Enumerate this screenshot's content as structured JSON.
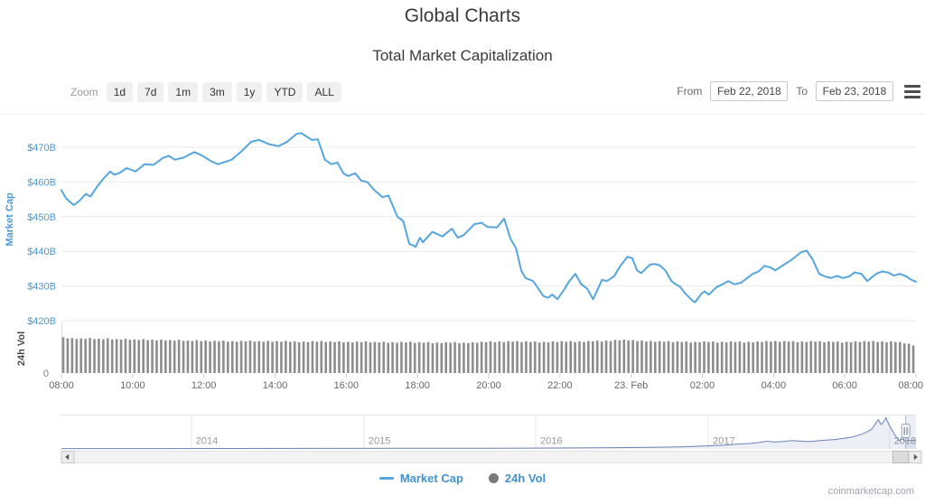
{
  "header": {
    "title": "Global Charts",
    "subtitle": "Total Market Capitalization"
  },
  "toolbar": {
    "zoom_label": "Zoom",
    "zoom_buttons": [
      "1d",
      "7d",
      "1m",
      "3m",
      "1y",
      "YTD",
      "ALL"
    ],
    "from_label": "From",
    "from_value": "Feb 22, 2018",
    "to_label": "To",
    "to_value": "Feb 23, 2018",
    "menu_icon": "hamburger-icon"
  },
  "legend": {
    "items": [
      {
        "label": "Market Cap",
        "marker": "line",
        "color": "#55a5de"
      },
      {
        "label": "24h Vol",
        "marker": "circle",
        "color": "#7a7a7a"
      }
    ]
  },
  "watermark": "coinmarketcap.com",
  "colors": {
    "line": "#55a5de",
    "axis_blue": "#4a98d8",
    "grid": "#e9e9e9",
    "vol_bar": "#8c8c8c",
    "vol_title": "#4a4a4a",
    "xlabel": "#666666",
    "year_label": "#999999",
    "zero_label": "#808080",
    "nav_line": "#6b82b8",
    "nav_fill": "rgba(107,130,184,0.13)",
    "nav_mask": "rgba(125,145,190,0.15)",
    "legend_text": "#4292cf",
    "watermark": "#a0a5ab"
  },
  "chart_data": [
    {
      "type": "line",
      "name": "Market Cap",
      "ylabel": "Market Cap",
      "x_unit": "minutes since Feb 22 2018 08:00",
      "xlim": [
        0,
        1440
      ],
      "ylim_billions": [
        420,
        478
      ],
      "grid": true,
      "yticks": [
        "$470B",
        "$460B",
        "$450B",
        "$440B",
        "$430B",
        "$420B"
      ],
      "ytick_values": [
        470,
        460,
        450,
        440,
        430,
        420
      ],
      "xticks": [
        "08:00",
        "10:00",
        "12:00",
        "14:00",
        "16:00",
        "18:00",
        "20:00",
        "22:00",
        "23. Feb",
        "02:00",
        "04:00",
        "06:00",
        "08:00"
      ],
      "points": [
        [
          0,
          457.6
        ],
        [
          8,
          455.2
        ],
        [
          21,
          453.3
        ],
        [
          30,
          454.5
        ],
        [
          41,
          456.5
        ],
        [
          49,
          455.8
        ],
        [
          60,
          458.6
        ],
        [
          70,
          460.8
        ],
        [
          82,
          463.0
        ],
        [
          89,
          462.1
        ],
        [
          98,
          462.6
        ],
        [
          110,
          464.0
        ],
        [
          125,
          463.0
        ],
        [
          140,
          465.1
        ],
        [
          155,
          464.9
        ],
        [
          171,
          466.9
        ],
        [
          181,
          467.5
        ],
        [
          191,
          466.4
        ],
        [
          206,
          467.0
        ],
        [
          224,
          468.6
        ],
        [
          236,
          467.7
        ],
        [
          252,
          466.0
        ],
        [
          264,
          465.1
        ],
        [
          287,
          466.4
        ],
        [
          302,
          468.6
        ],
        [
          320,
          471.6
        ],
        [
          333,
          472.1
        ],
        [
          351,
          470.8
        ],
        [
          366,
          470.3
        ],
        [
          380,
          471.5
        ],
        [
          396,
          473.8
        ],
        [
          404,
          474.1
        ],
        [
          422,
          472.1
        ],
        [
          432,
          472.3
        ],
        [
          444,
          466.4
        ],
        [
          455,
          465.1
        ],
        [
          465,
          465.6
        ],
        [
          475,
          462.5
        ],
        [
          483,
          461.7
        ],
        [
          495,
          462.5
        ],
        [
          505,
          460.4
        ],
        [
          516,
          459.9
        ],
        [
          526,
          457.8
        ],
        [
          541,
          455.6
        ],
        [
          551,
          456.1
        ],
        [
          566,
          450.0
        ],
        [
          576,
          448.7
        ],
        [
          586,
          442.2
        ],
        [
          597,
          441.3
        ],
        [
          604,
          443.9
        ],
        [
          609,
          442.6
        ],
        [
          625,
          445.6
        ],
        [
          642,
          444.3
        ],
        [
          658,
          446.5
        ],
        [
          668,
          443.9
        ],
        [
          678,
          444.7
        ],
        [
          696,
          447.8
        ],
        [
          708,
          448.2
        ],
        [
          718,
          447.0
        ],
        [
          734,
          446.9
        ],
        [
          746,
          449.4
        ],
        [
          757,
          443.5
        ],
        [
          766,
          440.9
        ],
        [
          775,
          434.4
        ],
        [
          782,
          432.3
        ],
        [
          795,
          431.4
        ],
        [
          812,
          427.1
        ],
        [
          820,
          426.6
        ],
        [
          827,
          427.5
        ],
        [
          836,
          426.2
        ],
        [
          848,
          429.2
        ],
        [
          856,
          431.4
        ],
        [
          866,
          433.5
        ],
        [
          876,
          430.5
        ],
        [
          886,
          429.2
        ],
        [
          896,
          426.2
        ],
        [
          911,
          431.8
        ],
        [
          919,
          431.4
        ],
        [
          931,
          432.7
        ],
        [
          942,
          435.8
        ],
        [
          954,
          438.4
        ],
        [
          962,
          438.0
        ],
        [
          970,
          434.5
        ],
        [
          977,
          433.7
        ],
        [
          992,
          436.2
        ],
        [
          1000,
          436.3
        ],
        [
          1008,
          436.0
        ],
        [
          1018,
          434.4
        ],
        [
          1028,
          431.4
        ],
        [
          1035,
          430.5
        ],
        [
          1043,
          429.7
        ],
        [
          1051,
          427.9
        ],
        [
          1063,
          425.8
        ],
        [
          1068,
          425.3
        ],
        [
          1079,
          427.9
        ],
        [
          1084,
          428.4
        ],
        [
          1091,
          427.5
        ],
        [
          1104,
          429.7
        ],
        [
          1114,
          430.5
        ],
        [
          1124,
          431.4
        ],
        [
          1134,
          430.5
        ],
        [
          1145,
          430.9
        ],
        [
          1152,
          431.8
        ],
        [
          1165,
          433.5
        ],
        [
          1175,
          434.2
        ],
        [
          1185,
          435.8
        ],
        [
          1195,
          435.3
        ],
        [
          1203,
          434.5
        ],
        [
          1218,
          436.2
        ],
        [
          1231,
          437.6
        ],
        [
          1246,
          439.7
        ],
        [
          1256,
          440.2
        ],
        [
          1266,
          437.6
        ],
        [
          1277,
          433.5
        ],
        [
          1287,
          432.7
        ],
        [
          1297,
          432.3
        ],
        [
          1307,
          432.9
        ],
        [
          1317,
          432.3
        ],
        [
          1327,
          432.7
        ],
        [
          1337,
          433.9
        ],
        [
          1348,
          433.5
        ],
        [
          1358,
          431.4
        ],
        [
          1373,
          433.5
        ],
        [
          1383,
          434.2
        ],
        [
          1393,
          433.9
        ],
        [
          1403,
          433.0
        ],
        [
          1413,
          433.5
        ],
        [
          1424,
          432.7
        ],
        [
          1432,
          431.8
        ],
        [
          1440,
          431.2
        ]
      ]
    },
    {
      "type": "bar",
      "name": "24h Vol",
      "ylabel": "24h Vol",
      "yticks": [
        "0"
      ],
      "x_unit": "15-minute intervals aligned with main chart (08:00 to 08:00)",
      "relative_heights": [
        0.99,
        0.97,
        0.96,
        0.97,
        0.95,
        0.96,
        0.94,
        0.95,
        0.93,
        0.94,
        0.92,
        0.93,
        0.91,
        0.92,
        0.9,
        0.91,
        0.9,
        0.89,
        0.9,
        0.88,
        0.89,
        0.9,
        0.88,
        0.89,
        0.88,
        0.89,
        0.88,
        0.87,
        0.88,
        0.89,
        0.87,
        0.88,
        0.86,
        0.87,
        0.88,
        0.86,
        0.87,
        0.85,
        0.86,
        0.87,
        0.85,
        0.86,
        0.84,
        0.85,
        0.86,
        0.84,
        0.85,
        0.86,
        0.88,
        0.87,
        0.88,
        0.89,
        0.87,
        0.88,
        0.86,
        0.87,
        0.88,
        0.89,
        0.87,
        0.88,
        0.9,
        0.89,
        0.91,
        0.93,
        0.92,
        0.9,
        0.89,
        0.88,
        0.89,
        0.87,
        0.88,
        0.86,
        0.87,
        0.88,
        0.86,
        0.87,
        0.88,
        0.86,
        0.87,
        0.88,
        0.89,
        0.88,
        0.89,
        0.87,
        0.88,
        0.89,
        0.87,
        0.88,
        0.86,
        0.87,
        0.88,
        0.89,
        0.88,
        0.87,
        0.88,
        0.84,
        0.78
      ]
    },
    {
      "type": "area",
      "name": "navigator",
      "x_year_ticks": [
        {
          "f": 0.152,
          "label": "2014"
        },
        {
          "f": 0.354,
          "label": "2015"
        },
        {
          "f": 0.555,
          "label": "2016"
        },
        {
          "f": 0.757,
          "label": "2017"
        },
        {
          "f": 0.969,
          "label": "2018"
        }
      ],
      "selected_range_xfrac": [
        0.988,
        1.0
      ],
      "points_xfrac_h": [
        [
          0,
          0.012
        ],
        [
          0.1,
          0.012
        ],
        [
          0.2,
          0.014
        ],
        [
          0.3,
          0.016
        ],
        [
          0.4,
          0.02
        ],
        [
          0.5,
          0.024
        ],
        [
          0.58,
          0.03
        ],
        [
          0.65,
          0.04
        ],
        [
          0.7,
          0.055
        ],
        [
          0.73,
          0.07
        ],
        [
          0.757,
          0.1
        ],
        [
          0.775,
          0.12
        ],
        [
          0.79,
          0.15
        ],
        [
          0.803,
          0.17
        ],
        [
          0.815,
          0.2
        ],
        [
          0.825,
          0.245
        ],
        [
          0.835,
          0.22
        ],
        [
          0.845,
          0.24
        ],
        [
          0.855,
          0.27
        ],
        [
          0.865,
          0.25
        ],
        [
          0.875,
          0.235
        ],
        [
          0.885,
          0.26
        ],
        [
          0.895,
          0.28
        ],
        [
          0.905,
          0.3
        ],
        [
          0.915,
          0.335
        ],
        [
          0.925,
          0.38
        ],
        [
          0.933,
          0.44
        ],
        [
          0.941,
          0.52
        ],
        [
          0.948,
          0.63
        ],
        [
          0.953,
          0.82
        ],
        [
          0.956,
          0.94
        ],
        [
          0.959,
          0.78
        ],
        [
          0.962,
          0.86
        ],
        [
          0.965,
          1.0
        ],
        [
          0.968,
          0.8
        ],
        [
          0.972,
          0.6
        ],
        [
          0.976,
          0.42
        ],
        [
          0.98,
          0.26
        ],
        [
          0.984,
          0.32
        ],
        [
          0.988,
          0.25
        ],
        [
          0.992,
          0.28
        ],
        [
          0.996,
          0.26
        ],
        [
          1.0,
          0.28
        ]
      ]
    }
  ]
}
